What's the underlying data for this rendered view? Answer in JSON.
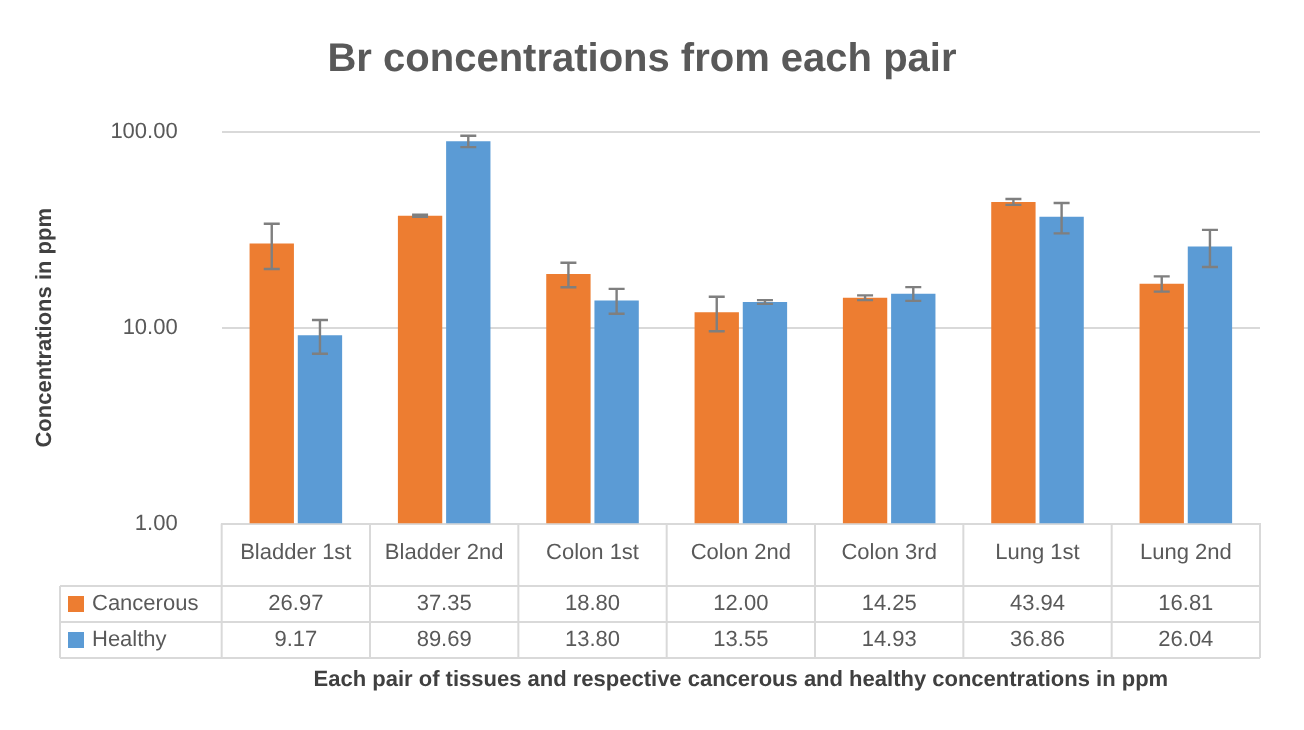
{
  "chart_data": {
    "type": "bar",
    "title": "Br concentrations from each pair",
    "xlabel": "Each pair of tissues and respective cancerous and healthy concentrations in ppm",
    "ylabel": "Concentrations in ppm",
    "categories": [
      "Bladder 1st",
      "Bladder 2nd",
      "Colon 1st",
      "Colon 2nd",
      "Colon 3rd",
      "Lung 1st",
      "Lung 2nd"
    ],
    "series": [
      {
        "name": "Cancerous",
        "color": "#ed7d31",
        "values": [
          26.97,
          37.35,
          18.8,
          12,
          14.25,
          43.94,
          16.81
        ],
        "value_labels": [
          "26.97",
          "37.35",
          "18.80",
          "12.00",
          "14.25",
          "43.94",
          "16.81"
        ],
        "errors": [
          7,
          0.5,
          2.7,
          2.4,
          0.4,
          1.5,
          1.5
        ]
      },
      {
        "name": "Healthy",
        "color": "#5b9bd5",
        "values": [
          9.17,
          89.69,
          13.8,
          13.55,
          14.93,
          36.86,
          26.04
        ],
        "value_labels": [
          "9.17",
          "89.69",
          "13.80",
          "13.55",
          "14.93",
          "36.86",
          "26.04"
        ],
        "errors": [
          1.8,
          6,
          2,
          0.3,
          1.2,
          6.5,
          5.6
        ]
      }
    ],
    "log": "y",
    "ylim": [
      1,
      100
    ],
    "yticks": [
      {
        "value": 1,
        "label": "1.00"
      },
      {
        "value": 10,
        "label": "10.00"
      },
      {
        "value": 100,
        "label": "100.00"
      }
    ],
    "grid": "y",
    "legend": "bottom"
  }
}
